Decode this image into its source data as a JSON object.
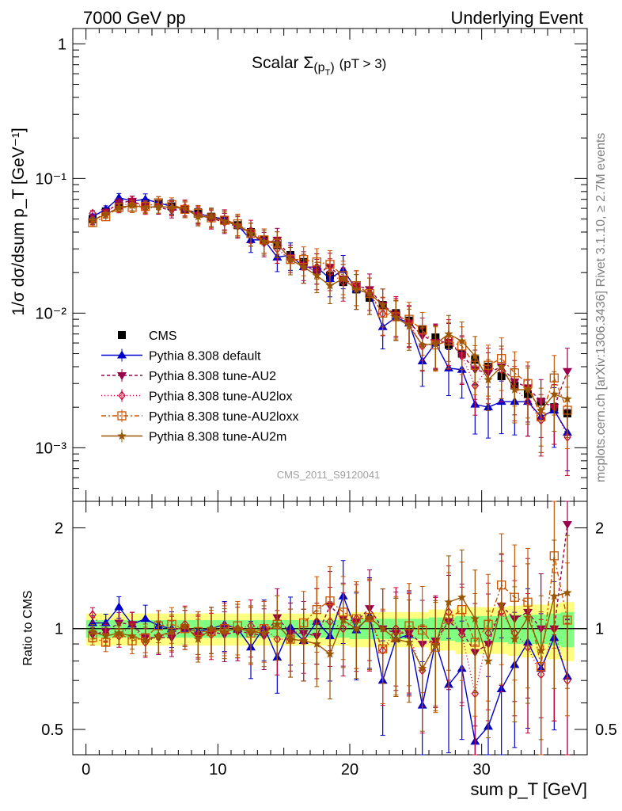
{
  "header": {
    "left": "7000 GeV pp",
    "right": "Underlying Event"
  },
  "side_labels": {
    "rivet": "Rivet 3.1.10, ≥ 2.7M events",
    "mcplots": "mcplots.cern.ch [arXiv:1306.3436]"
  },
  "analysis_tag": "CMS_2011_S9120041",
  "chart_data": [
    {
      "panel": "main",
      "type": "line",
      "title_prefix": "Scalar Σ",
      "title_sub": "(p",
      "title_sub2": "T",
      "title_sub3": ")",
      "title_suffix": "(pT > 3)",
      "ylabel": "1/σ dσ/dsum p_T [GeV⁻¹]",
      "xlabel": "sum p_T [GeV]",
      "yscale": "log",
      "xlim": [
        -1,
        38
      ],
      "ylim": [
        0.0004,
        1.3
      ],
      "y_ticks": [
        {
          "value": 1,
          "label": "1"
        },
        {
          "value": 0.1,
          "label": "10⁻¹"
        },
        {
          "value": 0.01,
          "label": "10⁻²"
        },
        {
          "value": 0.001,
          "label": "10⁻³"
        }
      ],
      "x_ticks": [
        0,
        10,
        20,
        30
      ],
      "x": [
        0.5,
        1.5,
        2.5,
        3.5,
        4.5,
        5.5,
        6.5,
        7.5,
        8.5,
        9.5,
        10.5,
        11.5,
        12.5,
        13.5,
        14.5,
        15.5,
        16.5,
        17.5,
        18.5,
        19.5,
        20.5,
        21.5,
        22.5,
        23.5,
        24.5,
        25.5,
        26.5,
        27.5,
        28.5,
        29.5,
        30.5,
        31.5,
        32.5,
        33.5,
        34.5,
        35.5,
        36.5
      ],
      "legend_position": "lower-left",
      "series": [
        {
          "name": "CMS",
          "color": "#000000",
          "marker": "square-filled",
          "dash": "none",
          "values": [
            0.05,
            0.057,
            0.063,
            0.066,
            0.066,
            0.065,
            0.062,
            0.059,
            0.056,
            0.052,
            0.049,
            0.045,
            0.04,
            0.035,
            0.032,
            0.027,
            0.024,
            0.021,
            0.019,
            0.017,
            0.015,
            0.013,
            0.0115,
            0.01,
            0.0088,
            0.0076,
            0.0066,
            0.0058,
            0.005,
            0.0045,
            0.004,
            0.0034,
            0.0029,
            0.0025,
            0.0022,
            0.002,
            0.0018
          ]
        },
        {
          "name": "Pythia 8.308 default",
          "color": "#0000cc",
          "marker": "triangle-up-filled",
          "dash": "none",
          "values": [
            0.052,
            0.059,
            0.072,
            0.068,
            0.07,
            0.066,
            0.062,
            0.059,
            0.055,
            0.052,
            0.05,
            0.045,
            0.035,
            0.035,
            0.026,
            0.027,
            0.022,
            0.022,
            0.018,
            0.021,
            0.015,
            0.014,
            0.0079,
            0.0093,
            0.0084,
            0.0044,
            0.006,
            0.0039,
            0.0038,
            0.0021,
            0.002,
            0.0022,
            0.0022,
            0.0022,
            0.0017,
            0.0019,
            0.0013
          ]
        },
        {
          "name": "Pythia 8.308 tune-AU2",
          "color": "#99004d",
          "marker": "triangle-down-filled",
          "dash": "4,3",
          "values": [
            0.048,
            0.056,
            0.066,
            0.068,
            0.062,
            0.061,
            0.058,
            0.059,
            0.053,
            0.051,
            0.047,
            0.044,
            0.039,
            0.033,
            0.035,
            0.026,
            0.023,
            0.02,
            0.022,
            0.018,
            0.016,
            0.015,
            0.0115,
            0.0097,
            0.0085,
            0.0068,
            0.0061,
            0.0061,
            0.0049,
            0.0038,
            0.0036,
            0.004,
            0.0031,
            0.0028,
            0.0022,
            0.002,
            0.0037
          ]
        },
        {
          "name": "Pythia 8.308 tune-AU2lox",
          "color": "#cc0033",
          "marker": "diamond-open",
          "dash": "1,3",
          "values": [
            0.055,
            0.055,
            0.06,
            0.068,
            0.06,
            0.062,
            0.06,
            0.061,
            0.054,
            0.05,
            0.05,
            0.045,
            0.041,
            0.035,
            0.03,
            0.025,
            0.022,
            0.022,
            0.02,
            0.017,
            0.016,
            0.014,
            0.0099,
            0.01,
            0.0084,
            0.0057,
            0.006,
            0.0065,
            0.0048,
            0.0029,
            0.0039,
            0.0038,
            0.0028,
            0.0022,
            0.0016,
            0.002,
            0.0012
          ]
        },
        {
          "name": "Pythia 8.308 tune-AU2loxx",
          "color": "#cc5500",
          "marker": "square-open",
          "dash": "6,3,2,3",
          "values": [
            0.047,
            0.052,
            0.061,
            0.061,
            0.062,
            0.066,
            0.064,
            0.059,
            0.055,
            0.051,
            0.049,
            0.046,
            0.039,
            0.035,
            0.033,
            0.025,
            0.025,
            0.024,
            0.023,
            0.019,
            0.016,
            0.014,
            0.01,
            0.0094,
            0.009,
            0.0075,
            0.0058,
            0.0062,
            0.0057,
            0.0041,
            0.0041,
            0.0046,
            0.0036,
            0.003,
            0.0017,
            0.0033,
            0.0019
          ]
        },
        {
          "name": "Pythia 8.308 tune-AU2m",
          "color": "#995500",
          "marker": "star-filled",
          "dash": "none",
          "values": [
            0.049,
            0.054,
            0.061,
            0.063,
            0.061,
            0.062,
            0.061,
            0.06,
            0.052,
            0.052,
            0.048,
            0.045,
            0.039,
            0.034,
            0.033,
            0.025,
            0.022,
            0.019,
            0.016,
            0.018,
            0.015,
            0.014,
            0.0115,
            0.0093,
            0.008,
            0.0058,
            0.0059,
            0.007,
            0.0062,
            0.0048,
            0.0032,
            0.004,
            0.0027,
            0.0027,
            0.0019,
            0.0025,
            0.0023
          ]
        }
      ]
    },
    {
      "panel": "ratio",
      "type": "line",
      "ylabel": "Ratio to CMS",
      "xlabel": "sum p_T [GeV]",
      "yscale": "log",
      "xlim": [
        -1,
        38
      ],
      "ylim": [
        0.42,
        2.4
      ],
      "y_ticks": [
        {
          "value": 0.5,
          "label": "0.5"
        },
        {
          "value": 1,
          "label": "1"
        },
        {
          "value": 2,
          "label": "2"
        }
      ],
      "x": [
        0.5,
        1.5,
        2.5,
        3.5,
        4.5,
        5.5,
        6.5,
        7.5,
        8.5,
        9.5,
        10.5,
        11.5,
        12.5,
        13.5,
        14.5,
        15.5,
        16.5,
        17.5,
        18.5,
        19.5,
        20.5,
        21.5,
        22.5,
        23.5,
        24.5,
        25.5,
        26.5,
        27.5,
        28.5,
        29.5,
        30.5,
        31.5,
        32.5,
        33.5,
        34.5,
        35.5,
        36.5
      ],
      "band_inner": [
        0.94,
        0.94,
        0.94,
        0.94,
        0.94,
        0.94,
        0.94,
        0.94,
        0.94,
        0.94,
        0.94,
        0.94,
        0.94,
        0.94,
        0.94,
        0.94,
        0.94,
        0.94,
        0.94,
        0.94,
        0.93,
        0.93,
        0.93,
        0.93,
        0.93,
        0.93,
        0.92,
        0.92,
        0.91,
        0.91,
        0.91,
        0.91,
        0.9,
        0.9,
        0.9,
        0.89,
        0.88
      ],
      "band_outer": [
        0.89,
        0.89,
        0.89,
        0.89,
        0.89,
        0.89,
        0.89,
        0.89,
        0.89,
        0.89,
        0.89,
        0.89,
        0.89,
        0.89,
        0.89,
        0.89,
        0.89,
        0.89,
        0.89,
        0.89,
        0.88,
        0.88,
        0.88,
        0.88,
        0.88,
        0.88,
        0.86,
        0.86,
        0.84,
        0.84,
        0.84,
        0.84,
        0.83,
        0.82,
        0.82,
        0.81,
        0.8
      ],
      "series": [
        {
          "name": "Pythia 8.308 default",
          "values": [
            1.04,
            1.04,
            1.16,
            1.03,
            1.07,
            1.02,
            1.0,
            1.0,
            0.98,
            1.0,
            1.03,
            1.0,
            0.88,
            1.01,
            0.82,
            1.01,
            0.92,
            1.05,
            0.95,
            1.25,
            0.99,
            1.09,
            0.7,
            0.93,
            0.96,
            0.59,
            0.91,
            0.68,
            0.76,
            0.46,
            0.51,
            0.66,
            0.78,
            0.91,
            0.76,
            0.94,
            0.72
          ]
        },
        {
          "name": "Pythia 8.308 tune-AU2",
          "values": [
            0.96,
            0.98,
            1.04,
            1.03,
            0.94,
            0.94,
            0.94,
            1.0,
            0.95,
            0.98,
            0.96,
            0.98,
            0.97,
            0.95,
            1.08,
            0.97,
            0.97,
            0.95,
            1.17,
            1.07,
            1.05,
            1.15,
            1.0,
            0.97,
            0.97,
            0.9,
            0.92,
            1.05,
            0.98,
            0.85,
            0.9,
            1.17,
            1.07,
            1.12,
            1.0,
            1.0,
            2.05
          ]
        },
        {
          "name": "Pythia 8.308 tune-AU2lox",
          "values": [
            1.1,
            0.97,
            0.95,
            1.03,
            0.91,
            0.95,
            0.97,
            1.03,
            0.96,
            0.96,
            1.02,
            1.0,
            1.02,
            1.0,
            0.93,
            0.93,
            0.92,
            1.05,
            1.05,
            1.0,
            1.07,
            1.07,
            0.86,
            1.0,
            0.95,
            0.75,
            0.91,
            1.12,
            0.96,
            0.64,
            0.97,
            1.12,
            0.97,
            0.88,
            0.73,
            1.0,
            0.7
          ]
        },
        {
          "name": "Pythia 8.308 tune-AU2loxx",
          "values": [
            0.94,
            0.91,
            0.97,
            0.92,
            0.94,
            1.02,
            1.03,
            1.0,
            0.98,
            0.98,
            1.0,
            1.02,
            0.97,
            1.0,
            1.03,
            0.93,
            1.04,
            1.14,
            1.21,
            1.12,
            1.07,
            1.08,
            0.87,
            0.94,
            1.02,
            0.99,
            0.88,
            1.07,
            1.14,
            0.91,
            1.03,
            1.35,
            1.24,
            1.2,
            0.77,
            1.65,
            1.06
          ]
        },
        {
          "name": "Pythia 8.308 tune-AU2m",
          "values": [
            0.98,
            0.95,
            0.97,
            0.95,
            0.92,
            0.95,
            0.98,
            1.02,
            0.93,
            1.0,
            0.98,
            1.0,
            0.98,
            0.97,
            1.03,
            0.93,
            0.92,
            0.9,
            0.84,
            1.06,
            1.0,
            1.08,
            1.0,
            0.93,
            0.91,
            0.76,
            0.89,
            1.2,
            1.24,
            1.07,
            0.8,
            1.18,
            0.93,
            1.08,
            0.86,
            1.25,
            1.28
          ]
        }
      ]
    }
  ]
}
